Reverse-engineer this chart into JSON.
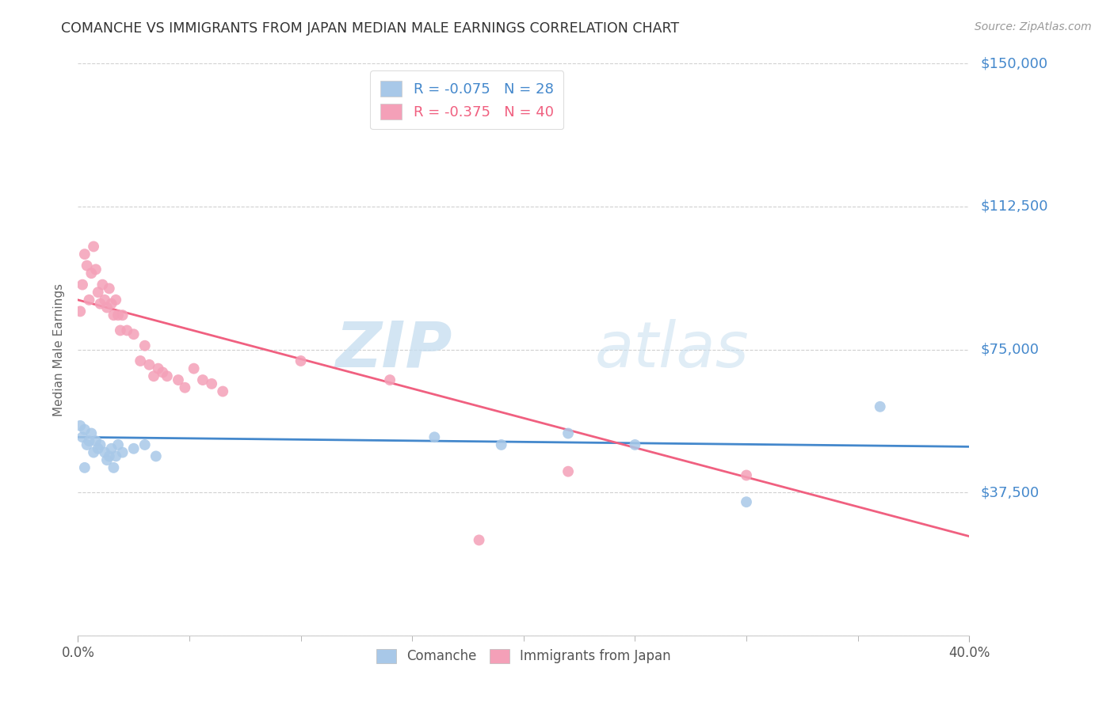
{
  "title": "COMANCHE VS IMMIGRANTS FROM JAPAN MEDIAN MALE EARNINGS CORRELATION CHART",
  "source": "Source: ZipAtlas.com",
  "ylabel": "Median Male Earnings",
  "xlim": [
    0.0,
    0.4
  ],
  "ylim": [
    0,
    150000
  ],
  "yticks": [
    0,
    37500,
    75000,
    112500,
    150000
  ],
  "ytick_labels": [
    "",
    "$37,500",
    "$75,000",
    "$112,500",
    "$150,000"
  ],
  "xtick_labels": [
    "0.0%",
    "40.0%"
  ],
  "xtick_vals": [
    0.0,
    0.4
  ],
  "comanche_color": "#a8c8e8",
  "japan_color": "#f4a0b8",
  "comanche_line_color": "#4488cc",
  "japan_line_color": "#f06080",
  "watermark_zip": "ZIP",
  "watermark_atlas": "atlas",
  "R_comanche": -0.075,
  "N_comanche": 28,
  "R_japan": -0.375,
  "N_japan": 40,
  "comanche_trend_x": [
    0.0,
    0.4
  ],
  "comanche_trend_y": [
    52000,
    49500
  ],
  "japan_trend_x": [
    0.0,
    0.4
  ],
  "japan_trend_y": [
    88000,
    26000
  ],
  "comanche_dots_x": [
    0.001,
    0.002,
    0.003,
    0.004,
    0.005,
    0.006,
    0.007,
    0.008,
    0.009,
    0.01,
    0.012,
    0.013,
    0.014,
    0.015,
    0.016,
    0.017,
    0.018,
    0.02,
    0.025,
    0.03,
    0.035,
    0.16,
    0.19,
    0.22,
    0.25,
    0.3,
    0.36,
    0.003
  ],
  "comanche_dots_y": [
    55000,
    52000,
    54000,
    50000,
    51000,
    53000,
    48000,
    51000,
    49000,
    50000,
    48000,
    46000,
    47000,
    49000,
    44000,
    47000,
    50000,
    48000,
    49000,
    50000,
    47000,
    52000,
    50000,
    53000,
    50000,
    35000,
    60000,
    44000
  ],
  "japan_dots_x": [
    0.001,
    0.002,
    0.003,
    0.004,
    0.005,
    0.006,
    0.007,
    0.008,
    0.009,
    0.01,
    0.011,
    0.012,
    0.013,
    0.014,
    0.015,
    0.016,
    0.017,
    0.018,
    0.019,
    0.02,
    0.022,
    0.025,
    0.028,
    0.03,
    0.032,
    0.034,
    0.036,
    0.038,
    0.04,
    0.045,
    0.048,
    0.052,
    0.056,
    0.06,
    0.065,
    0.1,
    0.14,
    0.18,
    0.22,
    0.3
  ],
  "japan_dots_y": [
    85000,
    92000,
    100000,
    97000,
    88000,
    95000,
    102000,
    96000,
    90000,
    87000,
    92000,
    88000,
    86000,
    91000,
    87000,
    84000,
    88000,
    84000,
    80000,
    84000,
    80000,
    79000,
    72000,
    76000,
    71000,
    68000,
    70000,
    69000,
    68000,
    67000,
    65000,
    70000,
    67000,
    66000,
    64000,
    72000,
    67000,
    25000,
    43000,
    42000
  ],
  "background_color": "#ffffff",
  "grid_color": "#d0d0d0",
  "title_color": "#333333",
  "axis_label_color": "#666666",
  "tick_label_color": "#4488cc"
}
